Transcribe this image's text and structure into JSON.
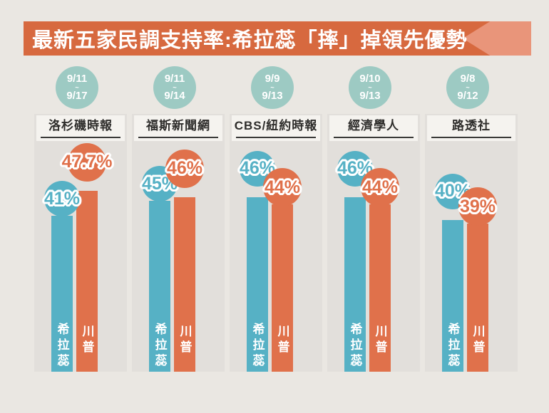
{
  "title": "最新五家民調支持率:希拉蕊「摔」掉領先優勢",
  "colors": {
    "banner": "#d7693f",
    "banner_arrow": "#e9957a",
    "hillary": "#56b1c5",
    "trump": "#e0714b",
    "date_circle": "#9dcac3",
    "background": "#eae7e2",
    "panel": "#e2dfdb"
  },
  "chart_data": {
    "type": "bar",
    "title": "最新五家民調支持率:希拉蕊「摔」掉領先優勢",
    "categories": [
      "洛杉磯時報",
      "福斯新聞網",
      "CBS/紐約時報",
      "經濟學人",
      "路透社"
    ],
    "date_ranges": [
      "9/11~9/17",
      "9/11~9/14",
      "9/9~9/13",
      "9/10~9/13",
      "9/8~9/12"
    ],
    "series": [
      {
        "name": "希拉蕊",
        "color": "#56b1c5",
        "values": [
          41,
          45,
          46,
          46,
          40
        ],
        "labels": [
          "41%",
          "45%",
          "46%",
          "46%",
          "40%"
        ]
      },
      {
        "name": "川普",
        "color": "#e0714b",
        "values": [
          47.7,
          46,
          44,
          44,
          39
        ],
        "labels": [
          "47.7%",
          "46%",
          "44%",
          "44%",
          "39%"
        ]
      }
    ],
    "ylim": [
      0,
      68
    ],
    "legend_position": "in-bar",
    "grid": false
  },
  "polls": [
    {
      "name": "洛杉磯時報",
      "date_start": "9/11",
      "date_sep": "~",
      "date_end": "9/17",
      "hillary_label": "41%",
      "trump_label": "47.7%",
      "hillary_name": "希拉蕊",
      "trump_name": "川普"
    },
    {
      "name": "福斯新聞網",
      "date_start": "9/11",
      "date_sep": "~",
      "date_end": "9/14",
      "hillary_label": "45%",
      "trump_label": "46%",
      "hillary_name": "希拉蕊",
      "trump_name": "川普"
    },
    {
      "name": "CBS/紐約時報",
      "date_start": "9/9",
      "date_sep": "~",
      "date_end": "9/13",
      "hillary_label": "46%",
      "trump_label": "44%",
      "hillary_name": "希拉蕊",
      "trump_name": "川普"
    },
    {
      "name": "經濟學人",
      "date_start": "9/10",
      "date_sep": "~",
      "date_end": "9/13",
      "hillary_label": "46%",
      "trump_label": "44%",
      "hillary_name": "希拉蕊",
      "trump_name": "川普"
    },
    {
      "name": "路透社",
      "date_start": "9/8",
      "date_sep": "~",
      "date_end": "9/12",
      "hillary_label": "40%",
      "trump_label": "39%",
      "hillary_name": "希拉蕊",
      "trump_name": "川普"
    }
  ]
}
